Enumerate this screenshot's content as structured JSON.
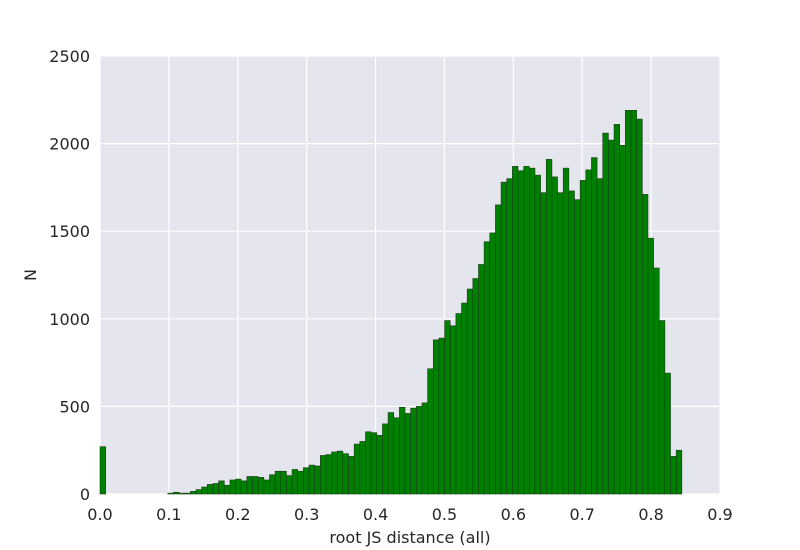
{
  "chart_data": {
    "type": "bar",
    "title": "",
    "xlabel": "root JS distance (all)",
    "ylabel": "N",
    "xlim": [
      0.0,
      0.9
    ],
    "ylim": [
      0,
      2500
    ],
    "xticks": [
      "0.0",
      "0.1",
      "0.2",
      "0.3",
      "0.4",
      "0.5",
      "0.6",
      "0.7",
      "0.8",
      "0.9"
    ],
    "yticks": [
      "0",
      "500",
      "1000",
      "1500",
      "2000",
      "2500"
    ],
    "grid": true,
    "legend": "none",
    "colors": {
      "bar": "#008000",
      "bar_edge": "#1a3d1a",
      "plot_bg": "#e5e5ee",
      "grid": "#ffffff"
    },
    "bin_start": 0.0,
    "bin_width": 0.0082,
    "counts": [
      270,
      0,
      0,
      0,
      0,
      0,
      0,
      0,
      0,
      0,
      0,
      0,
      5,
      10,
      5,
      5,
      15,
      25,
      40,
      55,
      60,
      75,
      50,
      80,
      85,
      75,
      100,
      100,
      95,
      80,
      110,
      130,
      130,
      105,
      140,
      130,
      150,
      165,
      160,
      220,
      225,
      240,
      245,
      230,
      215,
      285,
      300,
      355,
      350,
      335,
      400,
      465,
      435,
      495,
      460,
      490,
      500,
      520,
      715,
      880,
      890,
      990,
      960,
      1030,
      1090,
      1170,
      1230,
      1310,
      1440,
      1490,
      1650,
      1780,
      1800,
      1870,
      1845,
      1870,
      1860,
      1820,
      1720,
      1910,
      1810,
      1720,
      1860,
      1730,
      1680,
      1790,
      1850,
      1920,
      1800,
      2060,
      2020,
      2110,
      1990,
      2190,
      2190,
      2140,
      1710,
      1460,
      1290,
      990,
      690,
      215,
      250
    ]
  }
}
